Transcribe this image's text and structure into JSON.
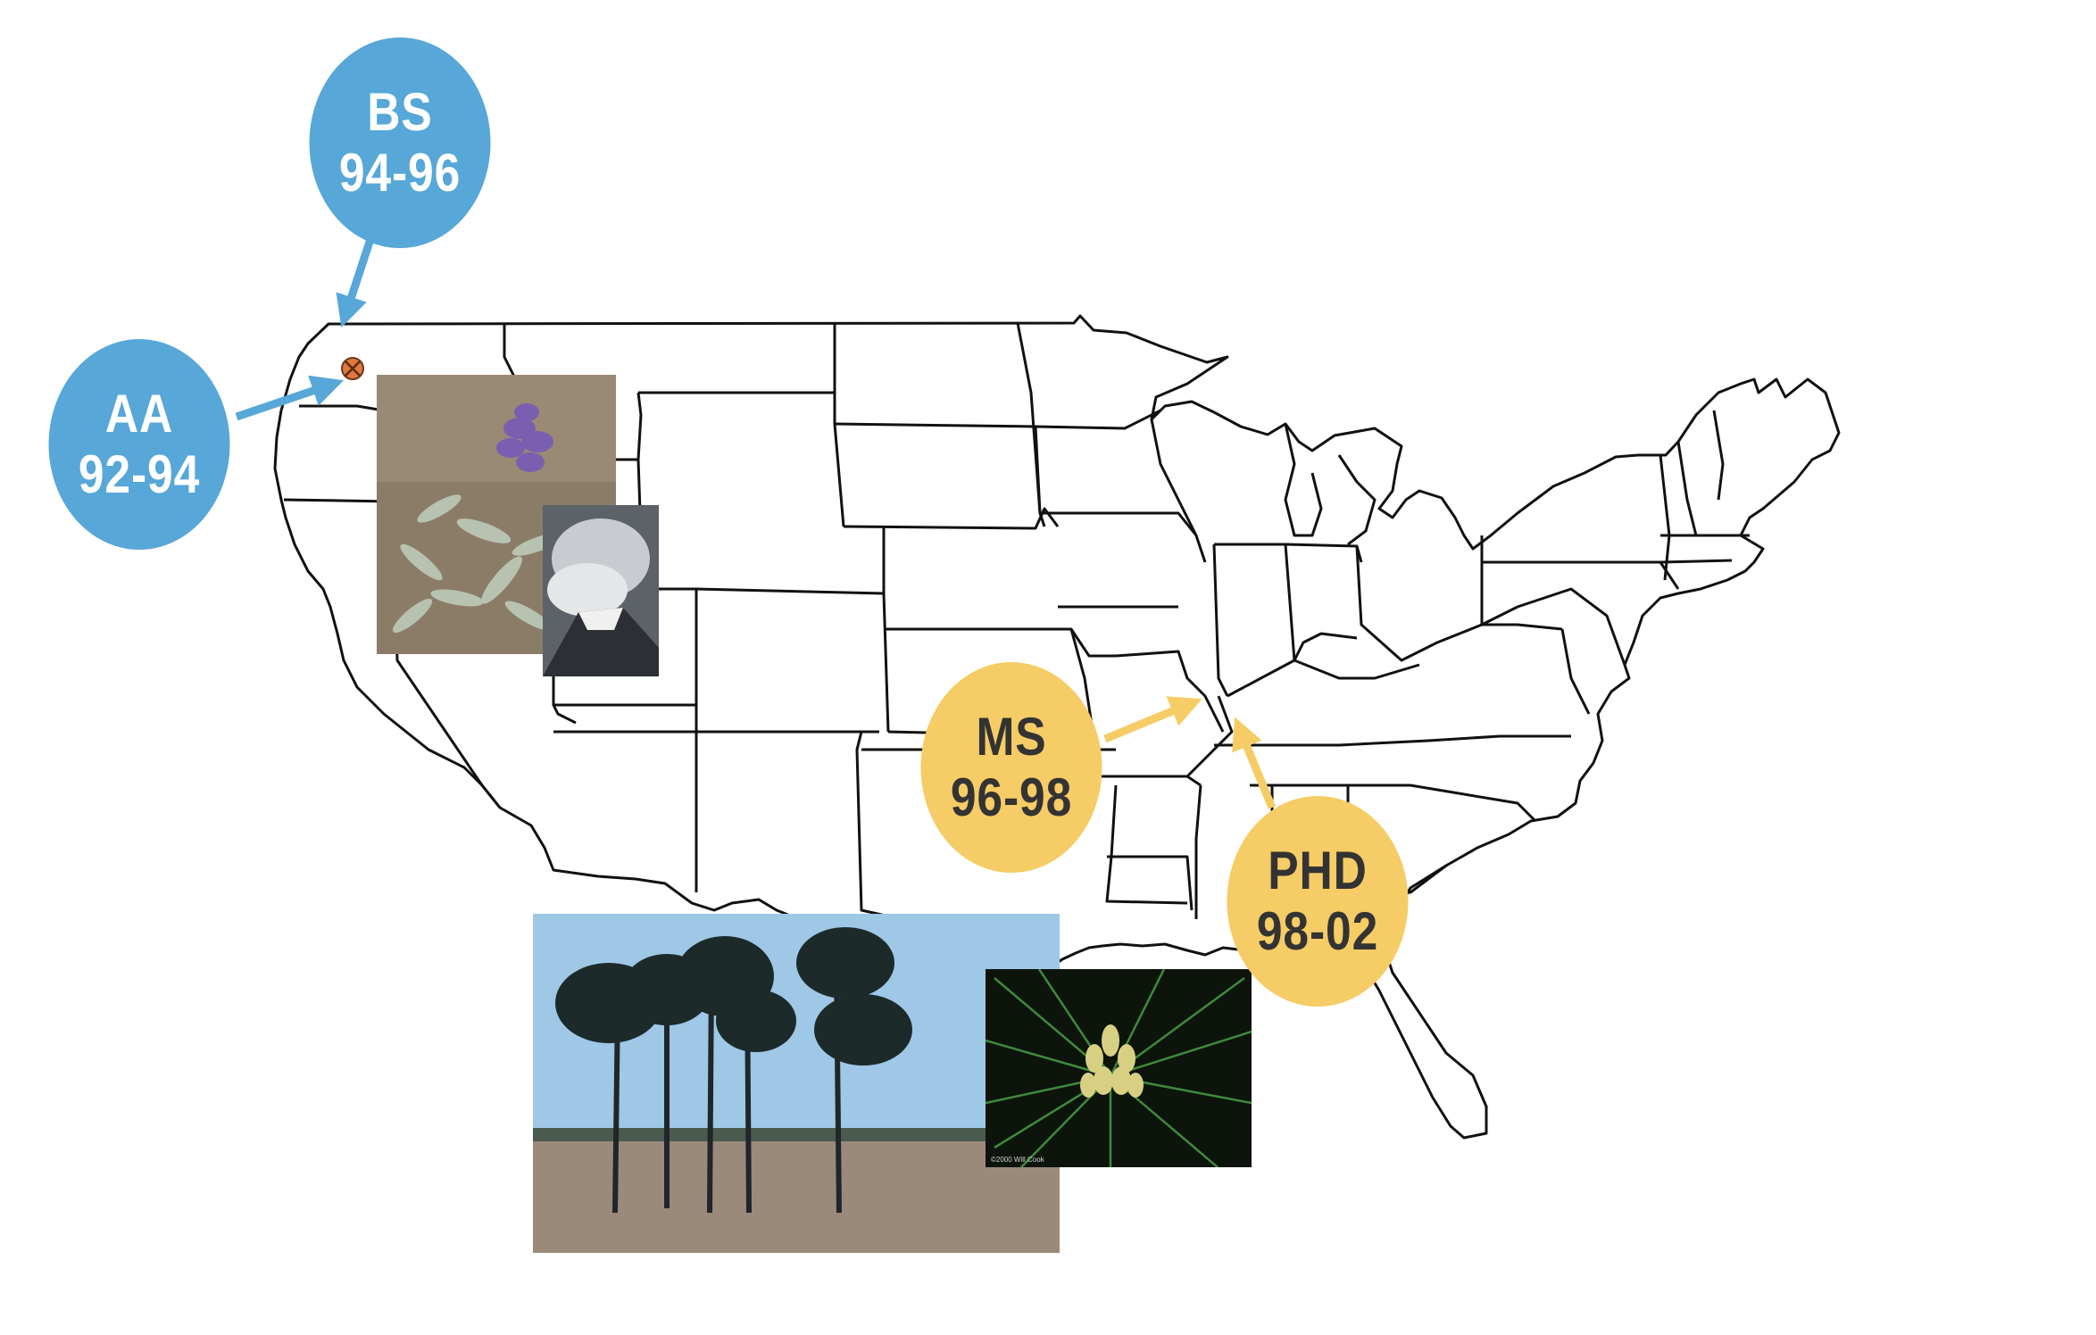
{
  "colors": {
    "undergrad_marker": "#57a7d8",
    "grad_marker": "#f5cc65",
    "undergrad_text": "#ffffff",
    "grad_text": "#333333",
    "state_lines": "#111111",
    "location_marker": "#e0793a"
  },
  "map": {
    "region": "contiguous United States",
    "style": "state outline map"
  },
  "markers": [
    {
      "id": "bs",
      "line1": "BS",
      "line2": "94-96",
      "color": "blue",
      "points_to": "northwest Washington"
    },
    {
      "id": "aa",
      "line1": "AA",
      "line2": "92-94",
      "color": "blue",
      "points_to": "northwest Washington"
    },
    {
      "id": "ms",
      "line1": "MS",
      "line2": "96-98",
      "color": "yellow",
      "points_to": "southern Illinois"
    },
    {
      "id": "phd",
      "line1": "PHD",
      "line2": "98-02",
      "color": "yellow",
      "points_to": "western Kentucky"
    }
  ],
  "location_icon": "circle-x-icon",
  "photos": [
    {
      "id": "lupine",
      "subject": "purple lupine flower with silvery leaves"
    },
    {
      "id": "volcano",
      "subject": "volcano eruption aerial"
    },
    {
      "id": "pines",
      "subject": "longleaf pine savanna"
    },
    {
      "id": "cone",
      "subject": "pine needles with pollen cones",
      "credit": "©2000 Will Cook"
    }
  ]
}
